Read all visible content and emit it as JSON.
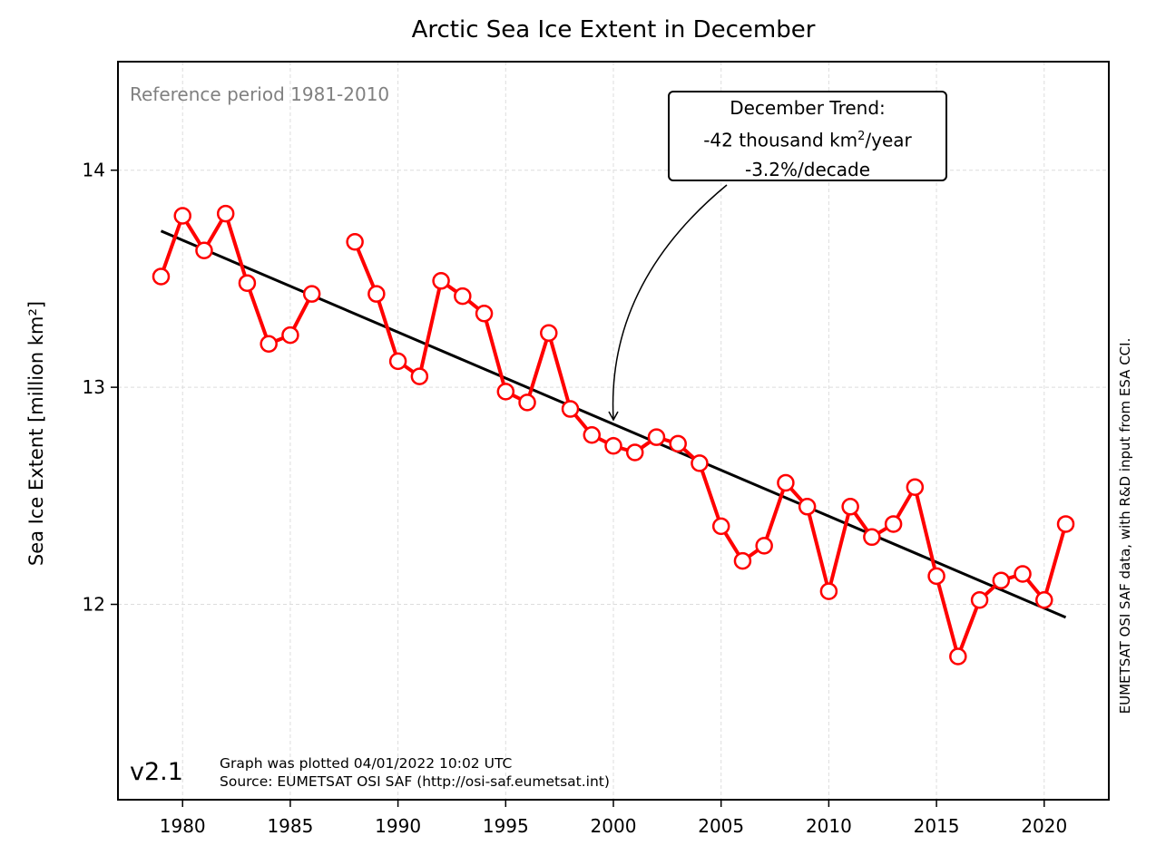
{
  "chart_data": {
    "type": "line",
    "title": "Arctic Sea Ice Extent in December",
    "xlabel": "",
    "ylabel": "Sea Ice Extent [million km²]",
    "xlim": [
      1977,
      2023
    ],
    "ylim": [
      11.1,
      14.5
    ],
    "x_ticks": [
      "1980",
      "1985",
      "1990",
      "1995",
      "2000",
      "2005",
      "2010",
      "2015",
      "2020"
    ],
    "y_ticks": [
      "12",
      "13",
      "14"
    ],
    "grid": true,
    "series": [
      {
        "color": "#ff0000",
        "marker": "open-circle",
        "points": [
          [
            1979,
            13.51
          ],
          [
            1980,
            13.79
          ],
          [
            1981,
            13.63
          ],
          [
            1982,
            13.8
          ],
          [
            1983,
            13.48
          ],
          [
            1984,
            13.2
          ],
          [
            1985,
            13.24
          ],
          [
            1986,
            13.43
          ],
          [
            1988,
            13.67
          ],
          [
            1989,
            13.43
          ],
          [
            1990,
            13.12
          ],
          [
            1991,
            13.05
          ],
          [
            1992,
            13.49
          ],
          [
            1993,
            13.42
          ],
          [
            1994,
            13.34
          ],
          [
            1995,
            12.98
          ],
          [
            1996,
            12.93
          ],
          [
            1997,
            13.25
          ],
          [
            1998,
            12.9
          ],
          [
            1999,
            12.78
          ],
          [
            2000,
            12.73
          ],
          [
            2001,
            12.7
          ],
          [
            2002,
            12.77
          ],
          [
            2003,
            12.74
          ],
          [
            2004,
            12.65
          ],
          [
            2005,
            12.36
          ],
          [
            2006,
            12.2
          ],
          [
            2007,
            12.27
          ],
          [
            2008,
            12.56
          ],
          [
            2009,
            12.45
          ],
          [
            2010,
            12.06
          ],
          [
            2011,
            12.45
          ],
          [
            2012,
            12.31
          ],
          [
            2013,
            12.37
          ],
          [
            2014,
            12.54
          ],
          [
            2015,
            12.13
          ],
          [
            2016,
            11.76
          ],
          [
            2017,
            12.02
          ],
          [
            2018,
            12.11
          ],
          [
            2019,
            12.14
          ],
          [
            2020,
            12.02
          ],
          [
            2021,
            12.37
          ]
        ]
      },
      {
        "color": "#000000",
        "style": "trend-line",
        "points": [
          [
            1979,
            13.72
          ],
          [
            2021,
            11.94
          ]
        ]
      }
    ],
    "annotation": {
      "line1": "December Trend:",
      "line2_prefix": "-42 thousand km",
      "line2_sup": "2",
      "line2_suffix": "/year",
      "line3": "-3.2%/decade",
      "arrow_target": [
        2000,
        12.85
      ]
    },
    "reference_text": "Reference period 1981-2010",
    "version": "v2.1",
    "plotted_line1": "Graph was plotted 04/01/2022 10:02 UTC",
    "plotted_line2": "Source: EUMETSAT OSI SAF (http://osi-saf.eumetsat.int)",
    "credit": "EUMETSAT OSI SAF data, with R&D input from ESA CCI."
  }
}
